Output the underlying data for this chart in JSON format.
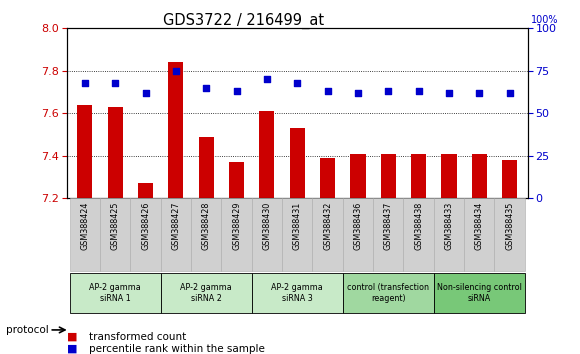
{
  "title": "GDS3722 / 216499_at",
  "samples": [
    "GSM388424",
    "GSM388425",
    "GSM388426",
    "GSM388427",
    "GSM388428",
    "GSM388429",
    "GSM388430",
    "GSM388431",
    "GSM388432",
    "GSM388436",
    "GSM388437",
    "GSM388438",
    "GSM388433",
    "GSM388434",
    "GSM388435"
  ],
  "red_values": [
    7.64,
    7.63,
    7.27,
    7.84,
    7.49,
    7.37,
    7.61,
    7.53,
    7.39,
    7.41,
    7.41,
    7.41,
    7.41,
    7.41,
    7.38
  ],
  "blue_values": [
    68,
    68,
    62,
    75,
    65,
    63,
    70,
    68,
    63,
    62,
    63,
    63,
    62,
    62,
    62
  ],
  "ylim_left": [
    7.2,
    8.0
  ],
  "ylim_right": [
    0,
    100
  ],
  "yticks_left": [
    7.2,
    7.4,
    7.6,
    7.8,
    8.0
  ],
  "yticks_right": [
    0,
    25,
    50,
    75,
    100
  ],
  "groups": [
    {
      "label": "AP-2 gamma\nsiRNA 1",
      "indices": [
        0,
        1,
        2
      ],
      "color": "#c8eac8"
    },
    {
      "label": "AP-2 gamma\nsiRNA 2",
      "indices": [
        3,
        4,
        5
      ],
      "color": "#c8eac8"
    },
    {
      "label": "AP-2 gamma\nsiRNA 3",
      "indices": [
        6,
        7,
        8
      ],
      "color": "#c8eac8"
    },
    {
      "label": "control (transfection\nreagent)",
      "indices": [
        9,
        10,
        11
      ],
      "color": "#a0d8a0"
    },
    {
      "label": "Non-silencing control\nsiRNA",
      "indices": [
        12,
        13,
        14
      ],
      "color": "#78c878"
    }
  ],
  "bar_color": "#cc0000",
  "dot_color": "#0000cc",
  "bar_width": 0.5,
  "bar_baseline": 7.2,
  "legend_items": [
    {
      "label": "transformed count",
      "color": "#cc0000"
    },
    {
      "label": "percentile rank within the sample",
      "color": "#0000cc"
    }
  ],
  "protocol_label": "protocol",
  "tick_color_left": "#cc0000",
  "tick_color_right": "#0000cc",
  "sample_box_color": "#d0d0d0",
  "right_top_label": "100%"
}
